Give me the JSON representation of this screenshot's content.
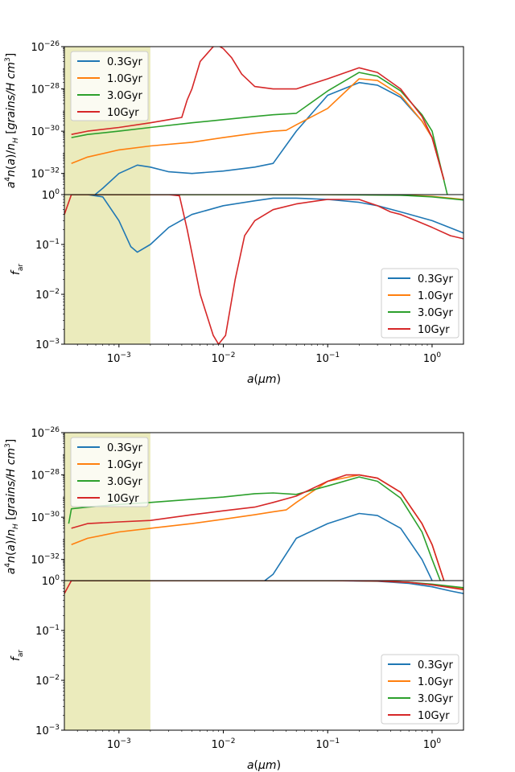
{
  "figure": {
    "series_names": [
      "0.3Gyr",
      "1.0Gyr",
      "3.0Gyr",
      "10Gyr"
    ],
    "series_colors": [
      "#1f77b4",
      "#ff7f0e",
      "#2ca02c",
      "#d62728"
    ],
    "shade_color": "#bcbd22",
    "xlabel": "a(μm)",
    "ylabel_top": "a⁴n(a)/n_H [grains/H cm³]",
    "ylabel_bottom": "f_ar",
    "x_tick_labels": [
      "10⁻³",
      "10⁻²",
      "10⁻¹",
      "10⁰"
    ],
    "y_tick_labels_top": [
      "10⁻²⁶",
      "10⁻²⁸",
      "10⁻³⁰",
      "10⁻³²"
    ],
    "y_tick_labels_bottom": [
      "10⁰",
      "10⁻¹",
      "10⁻²",
      "10⁻³"
    ]
  },
  "chart_data": [
    {
      "type": "line",
      "panel": "upper-figure / top axes",
      "xscale": "log",
      "yscale": "log",
      "xlim": [
        0.0003,
        2.0
      ],
      "ylim": [
        1e-33,
        1e-26
      ],
      "shaded_x_range": [
        0.0003,
        0.002
      ],
      "xlabel": "",
      "ylabel": "a^4 n(a)/n_H [grains/H cm^3]",
      "legend": "upper-left",
      "series": [
        {
          "name": "0.3Gyr",
          "x": [
            0.0005,
            0.0007,
            0.001,
            0.0015,
            0.002,
            0.003,
            0.005,
            0.01,
            0.02,
            0.03,
            0.05,
            0.1,
            0.2,
            0.3,
            0.5,
            0.8,
            1.0,
            1.3
          ],
          "y": [
            5e-34,
            2e-33,
            1e-32,
            2.5e-32,
            2e-32,
            1.2e-32,
            1e-32,
            1.3e-32,
            2e-32,
            3e-32,
            1e-30,
            5e-29,
            2e-28,
            1.5e-28,
            4e-29,
            3e-30,
            5e-31,
            5e-33
          ]
        },
        {
          "name": "1.0Gyr",
          "x": [
            0.00035,
            0.0005,
            0.001,
            0.002,
            0.005,
            0.01,
            0.02,
            0.03,
            0.04,
            0.05,
            0.1,
            0.2,
            0.3,
            0.5,
            0.8,
            1.0,
            1.3
          ],
          "y": [
            3e-32,
            6e-32,
            1.3e-31,
            2e-31,
            3e-31,
            5e-31,
            8e-31,
            1e-30,
            1.1e-30,
            2e-30,
            1.2e-29,
            3e-28,
            2.5e-28,
            5e-29,
            3e-30,
            5e-31,
            5e-33
          ]
        },
        {
          "name": "3.0Gyr",
          "x": [
            0.00035,
            0.0005,
            0.001,
            0.002,
            0.005,
            0.01,
            0.02,
            0.03,
            0.05,
            0.1,
            0.2,
            0.3,
            0.5,
            0.8,
            1.0,
            1.4
          ],
          "y": [
            5e-31,
            7e-31,
            1e-30,
            1.5e-30,
            2.5e-30,
            3.5e-30,
            5e-30,
            6e-30,
            7e-30,
            8e-29,
            6e-28,
            4e-28,
            8e-29,
            6e-30,
            1e-30,
            1e-33
          ]
        },
        {
          "name": "10Gyr",
          "x": [
            0.00035,
            0.0005,
            0.001,
            0.002,
            0.003,
            0.004,
            0.0045,
            0.005,
            0.006,
            0.008,
            0.009,
            0.01,
            0.012,
            0.015,
            0.02,
            0.03,
            0.05,
            0.1,
            0.2,
            0.3,
            0.5,
            0.8,
            1.0,
            1.3
          ],
          "y": [
            7e-31,
            1e-30,
            1.5e-30,
            2.5e-30,
            3.5e-30,
            4.5e-30,
            3e-29,
            1e-28,
            2e-27,
            1e-26,
            1.1e-26,
            8e-27,
            3e-27,
            5e-28,
            1.3e-28,
            1e-28,
            1e-28,
            3e-28,
            1e-27,
            6e-28,
            1e-28,
            5e-30,
            5e-31,
            5e-33
          ]
        }
      ]
    },
    {
      "type": "line",
      "panel": "upper-figure / bottom axes",
      "xscale": "log",
      "yscale": "log",
      "xlim": [
        0.0003,
        2.0
      ],
      "ylim": [
        0.001,
        1.0
      ],
      "shaded_x_range": [
        0.0003,
        0.002
      ],
      "xlabel": "a(μm)",
      "ylabel": "f_ar",
      "legend": "lower-right",
      "series": [
        {
          "name": "0.3Gyr",
          "x": [
            0.0005,
            0.0007,
            0.001,
            0.0013,
            0.0015,
            0.002,
            0.003,
            0.005,
            0.01,
            0.02,
            0.03,
            0.05,
            0.1,
            0.2,
            0.3,
            0.5,
            1.0,
            2.0
          ],
          "y": [
            1.0,
            0.9,
            0.3,
            0.09,
            0.07,
            0.1,
            0.22,
            0.4,
            0.6,
            0.75,
            0.85,
            0.85,
            0.8,
            0.7,
            0.6,
            0.45,
            0.3,
            0.17
          ]
        },
        {
          "name": "1.0Gyr",
          "x": [
            0.00035,
            0.1,
            0.5,
            1.0,
            2.0
          ],
          "y": [
            1.0,
            1.0,
            0.98,
            0.92,
            0.8
          ]
        },
        {
          "name": "3.0Gyr",
          "x": [
            0.00035,
            0.1,
            0.5,
            1.0,
            2.0
          ],
          "y": [
            1.0,
            1.0,
            0.97,
            0.9,
            0.78
          ]
        },
        {
          "name": "10Gyr",
          "x": [
            0.0003,
            0.00035,
            0.0005,
            0.001,
            0.003,
            0.0038,
            0.0045,
            0.006,
            0.008,
            0.009,
            0.0105,
            0.013,
            0.016,
            0.02,
            0.03,
            0.05,
            0.08,
            0.1,
            0.2,
            0.3,
            0.4,
            0.5,
            0.7,
            1.0,
            1.5,
            2.0
          ],
          "y": [
            0.4,
            1.0,
            1.0,
            1.0,
            1.0,
            0.95,
            0.2,
            0.01,
            0.0015,
            0.001,
            0.0015,
            0.02,
            0.15,
            0.3,
            0.5,
            0.65,
            0.75,
            0.8,
            0.8,
            0.6,
            0.45,
            0.4,
            0.3,
            0.22,
            0.15,
            0.13
          ]
        }
      ]
    },
    {
      "type": "line",
      "panel": "lower-figure / top axes",
      "xscale": "log",
      "yscale": "log",
      "xlim": [
        0.0003,
        2.0
      ],
      "ylim": [
        1e-33,
        1e-26
      ],
      "shaded_x_range": [
        0.0003,
        0.002
      ],
      "xlabel": "",
      "ylabel": "a^4 n(a)/n_H [grains/H cm^3]",
      "legend": "upper-left",
      "series": [
        {
          "name": "0.3Gyr",
          "x": [
            0.025,
            0.03,
            0.05,
            0.1,
            0.2,
            0.3,
            0.5,
            0.8,
            1.0
          ],
          "y": [
            1e-33,
            2e-33,
            1e-31,
            5e-31,
            1.5e-30,
            1.2e-30,
            3e-31,
            1e-32,
            1e-33
          ]
        },
        {
          "name": "1.0Gyr",
          "x": [
            0.00035,
            0.0005,
            0.001,
            0.002,
            0.005,
            0.01,
            0.02,
            0.03,
            0.04,
            0.05,
            0.1,
            0.2,
            0.3,
            0.5,
            0.8,
            1.0,
            1.3
          ],
          "y": [
            5e-32,
            1e-31,
            2e-31,
            3e-31,
            5e-31,
            8e-31,
            1.3e-30,
            1.8e-30,
            2.2e-30,
            5e-30,
            5e-29,
            1e-28,
            7e-29,
            1.5e-29,
            5e-31,
            5e-32,
            1e-33
          ]
        },
        {
          "name": "3.0Gyr",
          "x": [
            0.00033,
            0.00035,
            0.0005,
            0.001,
            0.002,
            0.005,
            0.01,
            0.02,
            0.03,
            0.05,
            0.1,
            0.2,
            0.3,
            0.5,
            0.8,
            1.0,
            1.2
          ],
          "y": [
            5e-31,
            2.5e-30,
            3e-30,
            4e-30,
            5e-30,
            7e-30,
            9e-30,
            1.3e-29,
            1.4e-29,
            1.2e-29,
            3e-29,
            8e-29,
            5e-29,
            8e-30,
            2e-31,
            1e-32,
            1e-33
          ]
        },
        {
          "name": "10Gyr",
          "x": [
            0.00035,
            0.0005,
            0.001,
            0.002,
            0.005,
            0.01,
            0.02,
            0.03,
            0.05,
            0.1,
            0.15,
            0.2,
            0.3,
            0.5,
            0.8,
            1.0,
            1.3
          ],
          "y": [
            3e-31,
            5e-31,
            6e-31,
            7e-31,
            1.3e-30,
            2e-30,
            3e-30,
            5e-30,
            1e-29,
            5e-29,
            1e-28,
            1e-28,
            7e-29,
            1.5e-29,
            5e-31,
            5e-32,
            1e-33
          ]
        }
      ]
    },
    {
      "type": "line",
      "panel": "lower-figure / bottom axes",
      "xscale": "log",
      "yscale": "log",
      "xlim": [
        0.0003,
        2.0
      ],
      "ylim": [
        0.001,
        1.0
      ],
      "shaded_x_range": [
        0.0003,
        0.002
      ],
      "xlabel": "a(μm)",
      "ylabel": "f_ar",
      "legend": "lower-right",
      "series": [
        {
          "name": "0.3Gyr",
          "x": [
            0.00035,
            0.1,
            0.3,
            0.6,
            1.0,
            1.5,
            2.0
          ],
          "y": [
            1.0,
            1.0,
            0.97,
            0.88,
            0.75,
            0.62,
            0.55
          ]
        },
        {
          "name": "1.0Gyr",
          "x": [
            0.00035,
            0.1,
            0.3,
            0.6,
            1.0,
            2.0
          ],
          "y": [
            1.0,
            1.0,
            0.98,
            0.92,
            0.82,
            0.68
          ]
        },
        {
          "name": "3.0Gyr",
          "x": [
            0.00035,
            0.1,
            0.3,
            0.6,
            1.0,
            2.0
          ],
          "y": [
            1.0,
            1.0,
            0.98,
            0.93,
            0.85,
            0.72
          ]
        },
        {
          "name": "10Gyr",
          "x": [
            0.0003,
            0.00035,
            0.1,
            0.3,
            0.6,
            1.0,
            2.0
          ],
          "y": [
            0.55,
            1.0,
            1.0,
            0.98,
            0.92,
            0.82,
            0.66
          ]
        }
      ]
    }
  ]
}
